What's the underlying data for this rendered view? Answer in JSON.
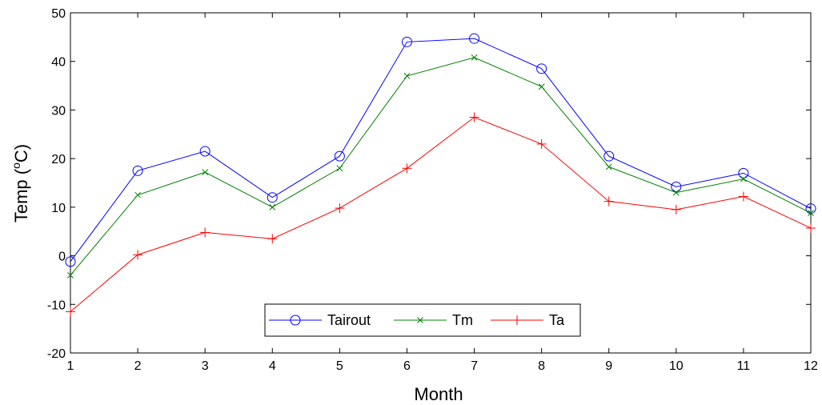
{
  "chart_data": {
    "type": "line",
    "xlabel": "Month",
    "ylabel_main": "Temp (",
    "ylabel_sup": "o",
    "ylabel_unit": "C)",
    "xlim": [
      1,
      12
    ],
    "ylim": [
      -20,
      50
    ],
    "x": [
      1,
      2,
      3,
      4,
      5,
      6,
      7,
      8,
      9,
      10,
      11,
      12
    ],
    "x_ticks": [
      "1",
      "2",
      "3",
      "4",
      "5",
      "6",
      "7",
      "8",
      "9",
      "10",
      "11",
      "12"
    ],
    "y_ticks": [
      -20,
      -10,
      0,
      10,
      20,
      30,
      40,
      50
    ],
    "y_tick_labels": [
      "-20",
      "-10",
      "0",
      "10",
      "20",
      "30",
      "40",
      "50"
    ],
    "grid": false,
    "legend_position": "bottom-center",
    "series": [
      {
        "name": "Tairout",
        "color": "#0000ff",
        "marker": "circle",
        "values": [
          -1.2,
          17.5,
          21.5,
          12.0,
          20.5,
          44.0,
          44.7,
          38.5,
          20.5,
          14.2,
          17.0,
          9.7
        ]
      },
      {
        "name": "Tm",
        "color": "#008000",
        "marker": "x",
        "values": [
          -4.0,
          12.5,
          17.2,
          10.0,
          18.0,
          37.0,
          40.8,
          34.8,
          18.3,
          13.0,
          15.8,
          8.8
        ]
      },
      {
        "name": "Ta",
        "color": "#ff0000",
        "marker": "plus",
        "values": [
          -11.5,
          0.2,
          4.8,
          3.5,
          9.8,
          18.0,
          28.5,
          23.0,
          11.2,
          9.5,
          12.2,
          5.7
        ]
      }
    ]
  }
}
